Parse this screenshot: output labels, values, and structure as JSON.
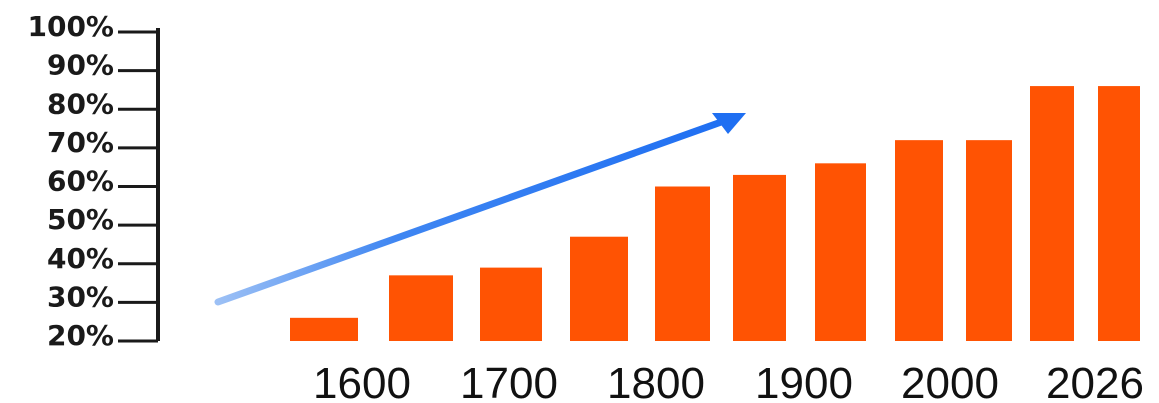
{
  "chart_data": {
    "type": "bar",
    "title": "",
    "xlabel": "",
    "ylabel": "",
    "ylim": [
      20,
      100
    ],
    "y_ticks": [
      "20%",
      "30%",
      "40%",
      "50%",
      "60%",
      "70%",
      "80%",
      "90%",
      "100%"
    ],
    "x_ticks": [
      "1600",
      "1700",
      "1800",
      "1900",
      "2000",
      "2026"
    ],
    "values": [
      26,
      37,
      39,
      47,
      60,
      63,
      66,
      72,
      72,
      86,
      86
    ],
    "grid": false,
    "legend": "none",
    "annotations": [
      {
        "type": "arrow",
        "meaning": "upward trend"
      }
    ],
    "colors": {
      "bar": "#ff5303",
      "arrow": "#1f6ff2",
      "axis": "#1a1a1a"
    }
  }
}
